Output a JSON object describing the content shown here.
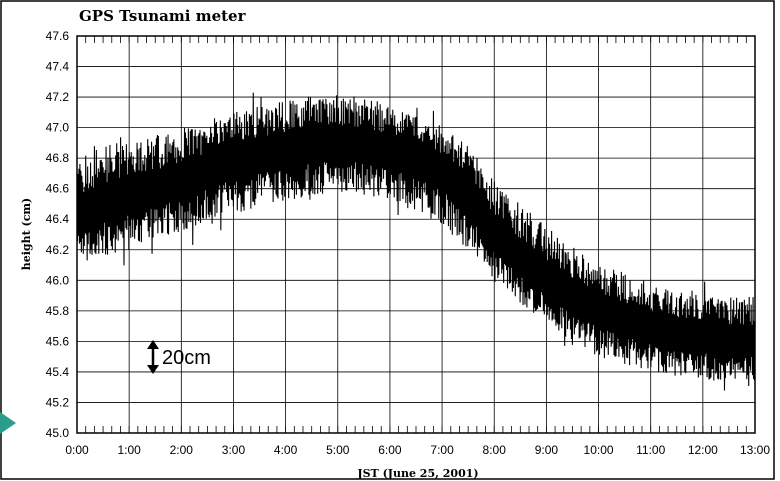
{
  "chart_data": {
    "type": "line",
    "title": "GPS Tsunami meter",
    "xlabel": "JST (June 25, 2001)",
    "ylabel": "height (cm)",
    "ylim": [
      45.0,
      47.6
    ],
    "yticks": [
      "45.0",
      "45.2",
      "45.4",
      "45.6",
      "45.8",
      "46.0",
      "46.2",
      "46.4",
      "46.6",
      "46.8",
      "47.0",
      "47.2",
      "47.4",
      "47.6"
    ],
    "xlim": [
      0,
      13
    ],
    "xticks": [
      "0:00",
      "1:00",
      "2:00",
      "3:00",
      "4:00",
      "5:00",
      "6:00",
      "7:00",
      "8:00",
      "9:00",
      "10:00",
      "11:00",
      "12:00",
      "13:00"
    ],
    "grid": true,
    "series": [
      {
        "x": [
          0,
          0.5,
          1,
          1.5,
          2,
          2.5,
          3,
          3.5,
          4,
          4.5,
          5,
          5.5,
          6,
          6.5,
          7,
          7.5,
          8,
          8.5,
          9,
          9.5,
          10,
          10.5,
          11,
          11.5,
          12,
          12.5,
          13
        ],
        "center": [
          46.4,
          46.5,
          46.55,
          46.6,
          46.65,
          46.72,
          46.78,
          46.82,
          46.86,
          46.88,
          46.9,
          46.88,
          46.85,
          46.8,
          46.72,
          46.55,
          46.3,
          46.15,
          46.0,
          45.9,
          45.8,
          45.75,
          45.7,
          45.65,
          45.62,
          45.6,
          45.6
        ],
        "low": [
          46.1,
          46.15,
          46.2,
          46.25,
          46.32,
          46.38,
          46.43,
          46.48,
          46.52,
          46.55,
          46.58,
          46.56,
          46.52,
          46.45,
          46.35,
          46.2,
          45.98,
          45.85,
          45.72,
          45.6,
          45.5,
          45.45,
          45.4,
          45.38,
          45.35,
          45.32,
          45.32
        ],
        "high": [
          46.8,
          46.88,
          46.92,
          46.95,
          47.0,
          47.05,
          47.1,
          47.14,
          47.18,
          47.2,
          47.22,
          47.2,
          47.16,
          47.1,
          47.02,
          46.88,
          46.65,
          46.5,
          46.35,
          46.22,
          46.1,
          46.05,
          45.98,
          45.95,
          45.92,
          45.9,
          45.9
        ]
      }
    ],
    "annotations": [
      {
        "text": "20cm",
        "span_cm": 0.2
      }
    ],
    "arrow_color": "#2a9d8f",
    "line_color": "#000000"
  }
}
